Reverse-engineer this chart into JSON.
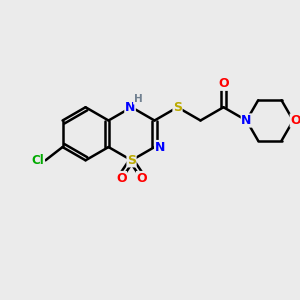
{
  "background_color": "#ebebeb",
  "bond_color": "#000000",
  "bond_width": 1.8,
  "atom_colors": {
    "C": "#000000",
    "N": "#0000ff",
    "O": "#ff0000",
    "S": "#bbaa00",
    "Cl": "#00aa00",
    "H": "#708090"
  },
  "font_size": 9,
  "figsize": [
    3.0,
    3.0
  ],
  "dpi": 100,
  "xlim": [
    0,
    10
  ],
  "ylim": [
    0,
    10
  ]
}
